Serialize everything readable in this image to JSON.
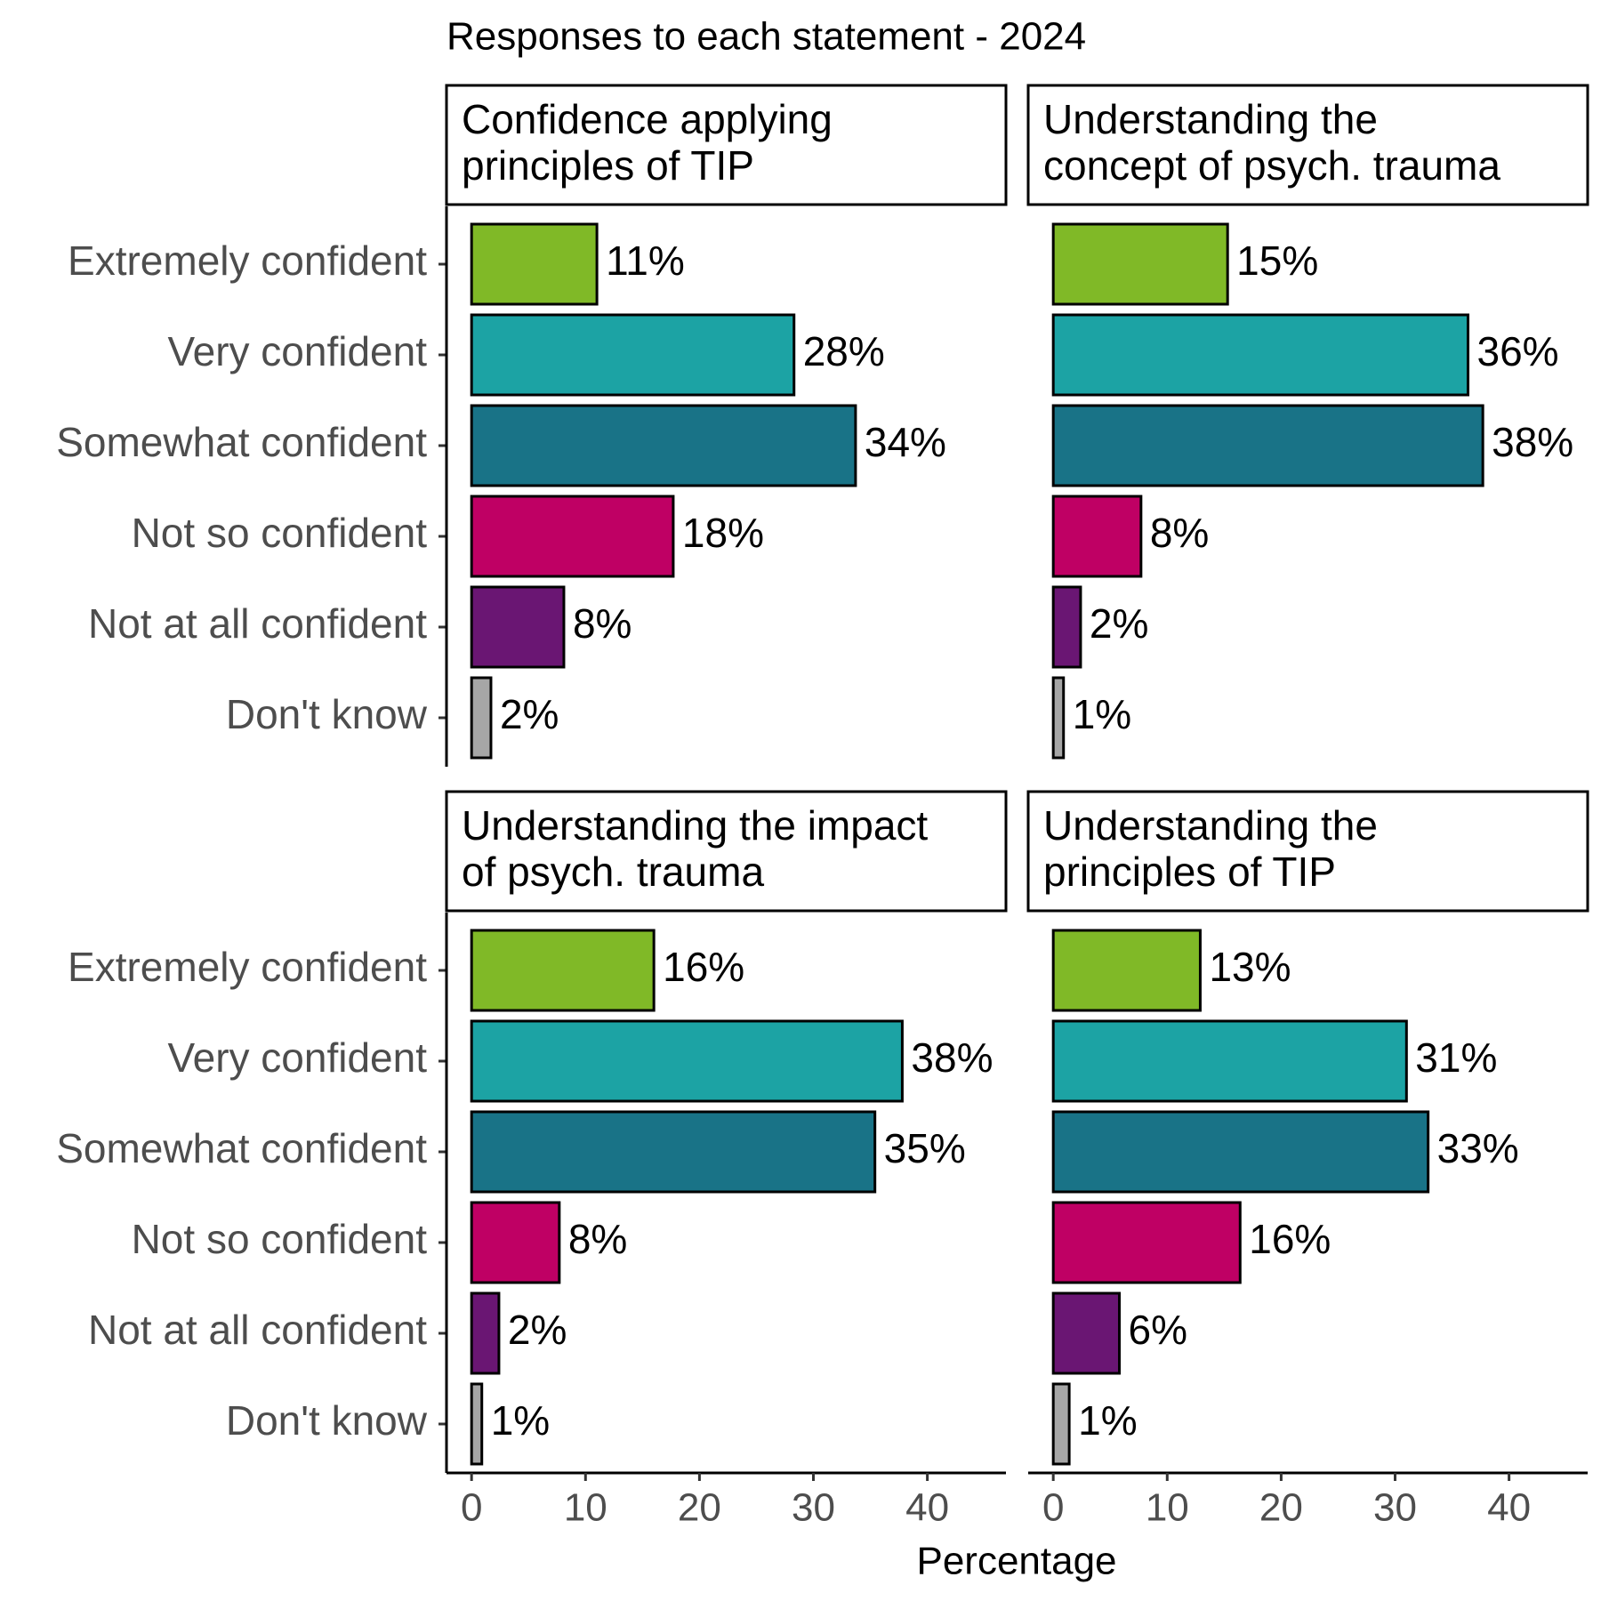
{
  "title": "Responses to each statement - 2024",
  "x_label": "Percentage",
  "categories": [
    "Extremely confident",
    "Very confident",
    "Somewhat confident",
    "Not so confident",
    "Not at all confident",
    "Don't know"
  ],
  "colors": [
    "#80b927",
    "#1ca3a4",
    "#197387",
    "#bf0064",
    "#6a1673",
    "#a6a6a6"
  ],
  "xlim": [
    -2.2,
    46.9
  ],
  "xticks": [
    0,
    10,
    20,
    30,
    40
  ],
  "chart_data": [
    {
      "type": "bar",
      "title": [
        "Confidence applying",
        "principles of TIP"
      ],
      "values": [
        11.0,
        28.3,
        33.7,
        17.7,
        8.1,
        1.7
      ],
      "value_labels": [
        "11%",
        "28%",
        "34%",
        "18%",
        "8%",
        "2%"
      ]
    },
    {
      "type": "bar",
      "title": [
        "Understanding the",
        "concept of psych. trauma"
      ],
      "values": [
        15.3,
        36.4,
        37.7,
        7.7,
        2.4,
        0.9
      ],
      "value_labels": [
        "15%",
        "36%",
        "38%",
        "8%",
        "2%",
        "1%"
      ]
    },
    {
      "type": "bar",
      "title": [
        "Understanding the impact",
        "of psych. trauma"
      ],
      "values": [
        16.0,
        37.8,
        35.4,
        7.7,
        2.4,
        0.9
      ],
      "value_labels": [
        "16%",
        "38%",
        "35%",
        "8%",
        "2%",
        "1%"
      ]
    },
    {
      "type": "bar",
      "title": [
        "Understanding the",
        "principles of TIP"
      ],
      "values": [
        12.9,
        31.0,
        32.9,
        16.4,
        5.8,
        1.4
      ],
      "value_labels": [
        "13%",
        "31%",
        "33%",
        "16%",
        "6%",
        "1%"
      ]
    }
  ]
}
